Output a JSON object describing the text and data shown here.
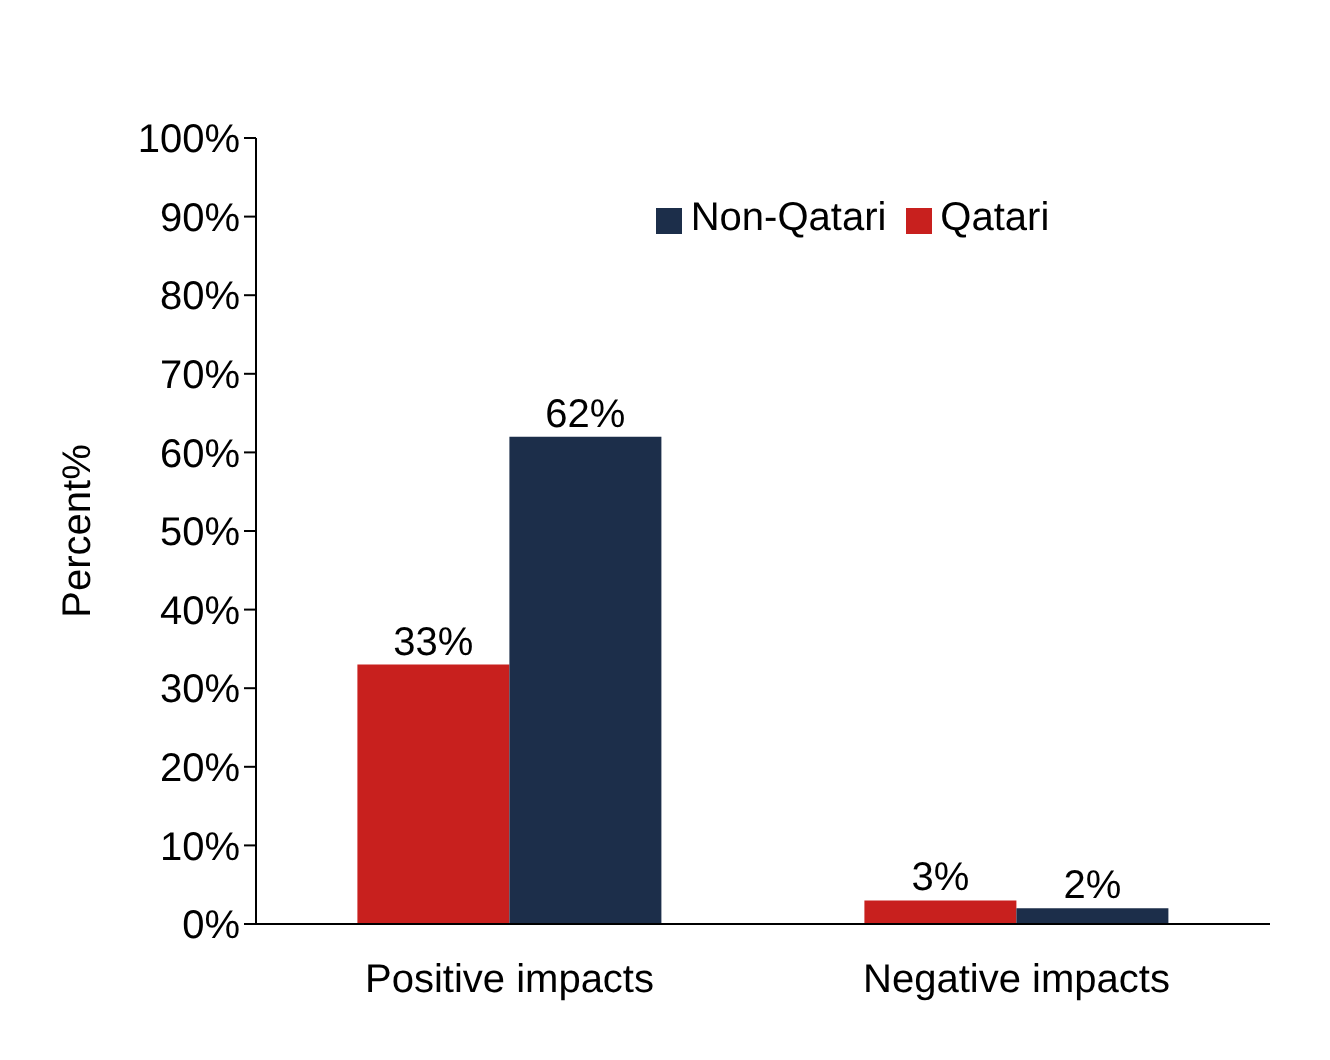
{
  "chart_data": {
    "type": "bar",
    "ylabel": "Percent%",
    "categories": [
      "Positive impacts",
      "Negative impacts"
    ],
    "series": [
      {
        "name": "Qatari",
        "color": "#c8201e",
        "values": [
          33,
          3
        ],
        "value_labels": [
          "33%",
          "3%"
        ]
      },
      {
        "name": "Non-Qatari",
        "color": "#1c2e4a",
        "values": [
          62,
          2
        ],
        "value_labels": [
          "62%",
          "2%"
        ]
      }
    ],
    "ylim": [
      0,
      100
    ],
    "yticks": [
      {
        "value": 0,
        "label": "0%"
      },
      {
        "value": 10,
        "label": "10%"
      },
      {
        "value": 20,
        "label": "20%"
      },
      {
        "value": 30,
        "label": "30%"
      },
      {
        "value": 40,
        "label": "40%"
      },
      {
        "value": 50,
        "label": "50%"
      },
      {
        "value": 60,
        "label": "60%"
      },
      {
        "value": 70,
        "label": "70%"
      },
      {
        "value": 80,
        "label": "80%"
      },
      {
        "value": 90,
        "label": "90%"
      },
      {
        "value": 100,
        "label": "100%"
      }
    ],
    "grid": false,
    "legend": "top"
  }
}
